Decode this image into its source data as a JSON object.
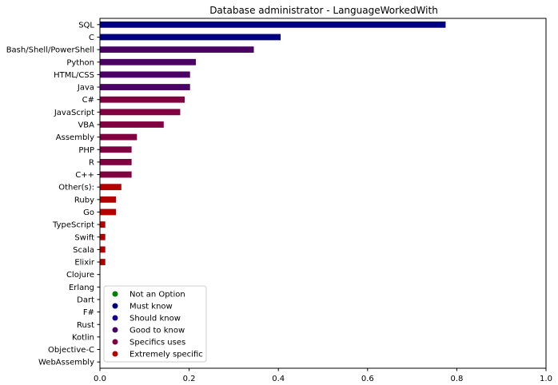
{
  "chart_data": {
    "type": "bar",
    "orientation": "horizontal",
    "title": "Database administrator - LanguageWorkedWith",
    "xlabel": "",
    "ylabel": "",
    "xlim": [
      0,
      1.0
    ],
    "xticks": [
      "0.0",
      "0.2",
      "0.4",
      "0.6",
      "0.8",
      "1.0"
    ],
    "grid": false,
    "legend_position": "lower-left",
    "categories": [
      "SQL",
      "C",
      "Bash/Shell/PowerShell",
      "Python",
      "HTML/CSS",
      "Java",
      "C#",
      "JavaScript",
      "VBA",
      "Assembly",
      "PHP",
      "R",
      "C++",
      "Other(s):",
      "Ruby",
      "Go",
      "TypeScript",
      "Swift",
      "Scala",
      "Elixir",
      "Clojure",
      "Erlang",
      "Dart",
      "F#",
      "Rust",
      "Kotlin",
      "Objective-C",
      "WebAssembly"
    ],
    "values": [
      0.775,
      0.405,
      0.345,
      0.215,
      0.202,
      0.202,
      0.19,
      0.18,
      0.143,
      0.083,
      0.071,
      0.071,
      0.071,
      0.048,
      0.036,
      0.036,
      0.012,
      0.012,
      0.012,
      0.012,
      0.0,
      0.0,
      0.0,
      0.0,
      0.0,
      0.0,
      0.0,
      0.0
    ],
    "bar_categories": [
      "Must know",
      "Must know",
      "Good to know",
      "Good to know",
      "Good to know",
      "Good to know",
      "Specifics uses",
      "Specifics uses",
      "Specifics uses",
      "Specifics uses",
      "Specifics uses",
      "Specifics uses",
      "Specifics uses",
      "Extremely specific",
      "Extremely specific",
      "Extremely specific",
      "Extremely specific",
      "Extremely specific",
      "Extremely specific",
      "Extremely specific",
      "Extremely specific",
      "Extremely specific",
      "Extremely specific",
      "Extremely specific",
      "Extremely specific",
      "Extremely specific",
      "Extremely specific",
      "Extremely specific"
    ],
    "legend": [
      {
        "label": "Not an Option",
        "color": "#008000"
      },
      {
        "label": "Must know",
        "color": "#000080"
      },
      {
        "label": "Should know",
        "color": "#1a0099"
      },
      {
        "label": "Good to know",
        "color": "#4b0066"
      },
      {
        "label": "Specifics uses",
        "color": "#800040"
      },
      {
        "label": "Extremely specific",
        "color": "#b30000"
      }
    ]
  }
}
